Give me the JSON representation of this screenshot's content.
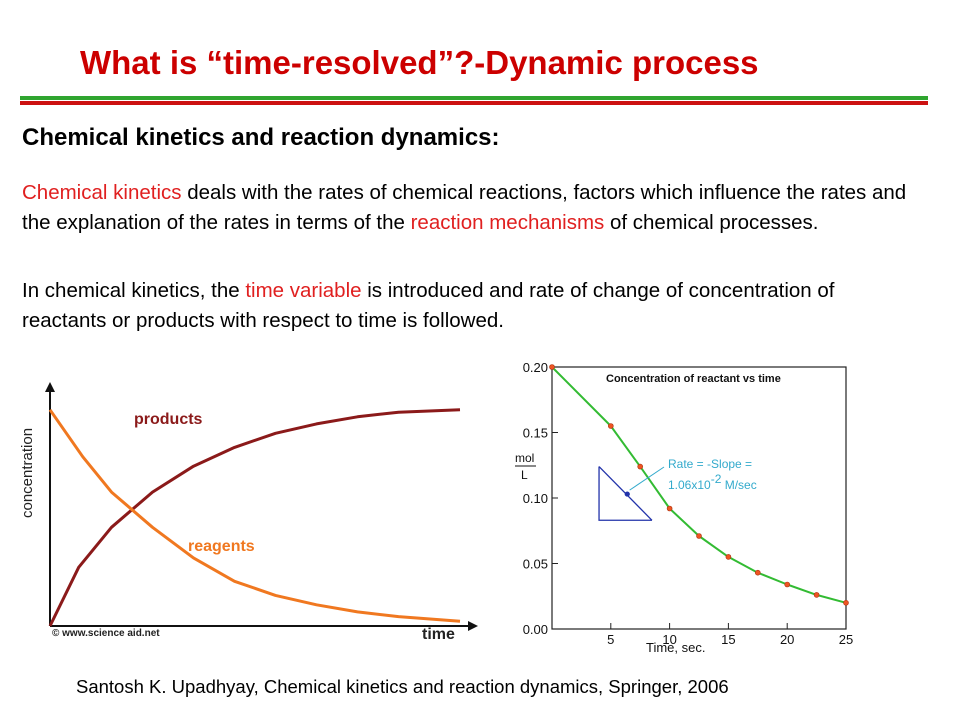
{
  "title": "What is “time-resolved”?-Dynamic process",
  "subtitle": "Chemical kinetics and reaction dynamics:",
  "paragraph1": {
    "r1": "Chemical kinetics",
    "t1": " deals with the rates of chemical reactions, factors which influence the rates and the explanation of the rates in terms of the ",
    "r2": "reaction mechanisms",
    "t2": " of chemical processes."
  },
  "paragraph2": {
    "t1": "In chemical kinetics, the ",
    "r1": "time variable",
    "t2": " is introduced and rate of change of concentration of reactants or products with respect to time is followed."
  },
  "citation": "Santosh K. Upadhyay, Chemical kinetics and reaction dynamics, Springer, 2006",
  "colors": {
    "title_red": "#cc0000",
    "green_rule": "#2fa52f",
    "red_rule": "#cc1111",
    "text_red": "#e02020"
  },
  "chart_data": [
    {
      "type": "line",
      "ylabel": "concentration",
      "xlabel": "time",
      "credit": "© www.science aid.net",
      "series": [
        {
          "name": "products",
          "color": "#8b1a1a",
          "values": [
            [
              0,
              0.0
            ],
            [
              0.07,
              0.25
            ],
            [
              0.15,
              0.42
            ],
            [
              0.25,
              0.57
            ],
            [
              0.35,
              0.68
            ],
            [
              0.45,
              0.76
            ],
            [
              0.55,
              0.82
            ],
            [
              0.65,
              0.86
            ],
            [
              0.75,
              0.89
            ],
            [
              0.85,
              0.91
            ],
            [
              1.0,
              0.92
            ]
          ]
        },
        {
          "name": "reagents",
          "color": "#f07820",
          "values": [
            [
              0,
              0.92
            ],
            [
              0.08,
              0.72
            ],
            [
              0.15,
              0.57
            ],
            [
              0.25,
              0.42
            ],
            [
              0.35,
              0.29
            ],
            [
              0.45,
              0.19
            ],
            [
              0.55,
              0.13
            ],
            [
              0.65,
              0.09
            ],
            [
              0.75,
              0.06
            ],
            [
              0.85,
              0.04
            ],
            [
              1.0,
              0.02
            ]
          ]
        }
      ]
    },
    {
      "type": "scatter",
      "title": "Concentration of reactant vs time",
      "xlabel": "Time, sec.",
      "ylabel_num": "mol",
      "ylabel_den": "L",
      "xlim": [
        0,
        25
      ],
      "ylim": [
        0.0,
        0.2
      ],
      "xticks": [
        "5",
        "10",
        "15",
        "20",
        "25"
      ],
      "yticks": [
        "0.00",
        "0.05",
        "0.10",
        "0.15",
        "0.20"
      ],
      "points": [
        [
          0,
          0.2
        ],
        [
          5,
          0.155
        ],
        [
          7.5,
          0.124
        ],
        [
          10,
          0.092
        ],
        [
          12.5,
          0.071
        ],
        [
          15,
          0.055
        ],
        [
          17.5,
          0.043
        ],
        [
          20,
          0.034
        ],
        [
          22.5,
          0.026
        ],
        [
          25,
          0.02
        ]
      ],
      "annotation_line1": "Rate = -Slope =",
      "annotation_line2": "1.06x10",
      "annotation_exp": "-2",
      "annotation_unit": " M/sec",
      "curve_color": "#33bb33",
      "point_color": "#ee5522",
      "tangent_color": "#2233aa",
      "annotation_color": "#33aacc"
    }
  ]
}
